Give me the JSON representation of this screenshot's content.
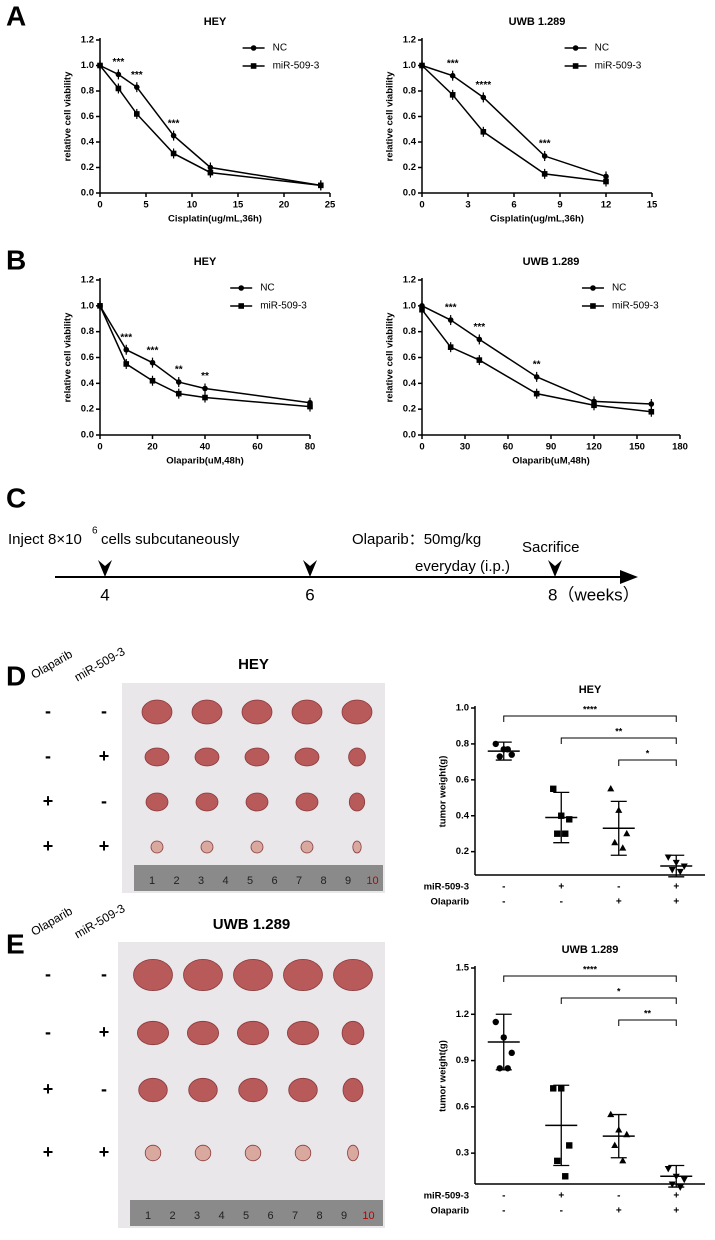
{
  "panels": {
    "labels": [
      "A",
      "B",
      "C",
      "D",
      "E"
    ]
  },
  "chart_data": [
    {
      "type": "line",
      "title": "HEY",
      "xlabel": "Cisplatin(ug/mL,36h)",
      "ylabel": "relative cell viability",
      "x": [
        0,
        2,
        4,
        8,
        12,
        24
      ],
      "series": [
        {
          "name": "NC",
          "color": "#000000",
          "marker": "circle",
          "values": [
            1.0,
            0.93,
            0.83,
            0.45,
            0.2,
            0.06
          ]
        },
        {
          "name": "miR-509-3",
          "color": "#000000",
          "marker": "square",
          "values": [
            1.0,
            0.82,
            0.62,
            0.31,
            0.16,
            0.06
          ]
        }
      ],
      "xlim": [
        0,
        25
      ],
      "xticks": [
        0,
        5,
        10,
        15,
        20,
        25
      ],
      "ylim": [
        0,
        1.2
      ],
      "yticks": [
        {
          "value": 0,
          "label": "0.0"
        },
        0.2,
        0.4,
        0.6,
        0.8,
        {
          "value": 1,
          "label": "1.0"
        },
        1.2
      ],
      "legend": "upper right",
      "annotations": [
        {
          "x": 2,
          "text": "***"
        },
        {
          "x": 4,
          "text": "***"
        },
        {
          "x": 8,
          "text": "***"
        }
      ]
    },
    {
      "type": "line",
      "title": "UWB 1.289",
      "xlabel": "Cisplatin(ug/mL,36h)",
      "ylabel": "relative cell viability",
      "x": [
        0,
        2,
        4,
        8,
        12
      ],
      "series": [
        {
          "name": "NC",
          "color": "#000000",
          "marker": "circle",
          "values": [
            1.0,
            0.92,
            0.75,
            0.29,
            0.13
          ]
        },
        {
          "name": "miR-509-3",
          "color": "#000000",
          "marker": "square",
          "values": [
            1.0,
            0.77,
            0.48,
            0.15,
            0.09
          ]
        }
      ],
      "xlim": [
        0,
        15
      ],
      "xticks": [
        0,
        3,
        6,
        9,
        12,
        15
      ],
      "ylim": [
        0,
        1.2
      ],
      "yticks": [
        {
          "value": 0,
          "label": "0.0"
        },
        0.2,
        0.4,
        0.6,
        0.8,
        {
          "value": 1,
          "label": "1.0"
        },
        1.2
      ],
      "legend": "upper right",
      "annotations": [
        {
          "x": 2,
          "text": "***"
        },
        {
          "x": 4,
          "text": "****"
        },
        {
          "x": 8,
          "text": "***"
        }
      ]
    },
    {
      "type": "line",
      "title": "HEY",
      "xlabel": "Olaparib(uM,48h)",
      "ylabel": "relative cell viability",
      "x": [
        0,
        10,
        20,
        30,
        40,
        80
      ],
      "series": [
        {
          "name": "NC",
          "color": "#000000",
          "marker": "circle",
          "values": [
            1.0,
            0.66,
            0.56,
            0.41,
            0.36,
            0.25
          ]
        },
        {
          "name": "miR-509-3",
          "color": "#000000",
          "marker": "square",
          "values": [
            1.0,
            0.55,
            0.42,
            0.32,
            0.29,
            0.22
          ]
        }
      ],
      "xlim": [
        0,
        80
      ],
      "xticks": [
        0,
        20,
        40,
        60,
        80
      ],
      "ylim": [
        0,
        1.2
      ],
      "yticks": [
        {
          "value": 0,
          "label": "0.0"
        },
        0.2,
        0.4,
        0.6,
        0.8,
        {
          "value": 1,
          "label": "1.0"
        },
        1.2
      ],
      "legend": "upper right",
      "annotations": [
        {
          "x": 10,
          "text": "***"
        },
        {
          "x": 20,
          "text": "***"
        },
        {
          "x": 30,
          "text": "**"
        },
        {
          "x": 40,
          "text": "**"
        }
      ]
    },
    {
      "type": "line",
      "title": "UWB 1.289",
      "xlabel": "Olaparib(uM,48h)",
      "ylabel": "relative cell viability",
      "x": [
        0,
        20,
        40,
        80,
        120,
        160
      ],
      "series": [
        {
          "name": "NC",
          "color": "#000000",
          "marker": "circle",
          "values": [
            1.0,
            0.89,
            0.74,
            0.45,
            0.26,
            0.24
          ]
        },
        {
          "name": "miR-509-3",
          "color": "#000000",
          "marker": "square",
          "values": [
            0.97,
            0.68,
            0.58,
            0.32,
            0.23,
            0.18
          ]
        }
      ],
      "xlim": [
        0,
        180
      ],
      "xticks": [
        0,
        30,
        60,
        90,
        120,
        150,
        180
      ],
      "ylim": [
        0,
        1.2
      ],
      "yticks": [
        {
          "value": 0,
          "label": "0.0"
        },
        0.2,
        0.4,
        0.6,
        0.8,
        {
          "value": 1,
          "label": "1.0"
        },
        1.2
      ],
      "legend": "upper right",
      "annotations": [
        {
          "x": 20,
          "text": "***"
        },
        {
          "x": 40,
          "text": "***"
        },
        {
          "x": 80,
          "text": "**"
        }
      ]
    },
    {
      "type": "dot",
      "title": "HEY",
      "ylabel": "tumor weight(g)",
      "ylim": [
        0.07,
        1.0
      ],
      "yticks": [
        0.2,
        0.4,
        0.6,
        0.8,
        {
          "value": 1,
          "label": "1.0"
        }
      ],
      "groups": [
        {
          "marker": "circle",
          "values": [
            0.8,
            0.77,
            0.74,
            0.73,
            0.77
          ],
          "mean": 0.76,
          "sd": 0.05
        },
        {
          "marker": "square",
          "values": [
            0.55,
            0.4,
            0.38,
            0.3,
            0.3
          ],
          "mean": 0.39,
          "sd": 0.14
        },
        {
          "marker": "triangle",
          "values": [
            0.55,
            0.43,
            0.3,
            0.25,
            0.22
          ],
          "mean": 0.33,
          "sd": 0.15
        },
        {
          "marker": "triangle-down",
          "values": [
            0.17,
            0.14,
            0.12,
            0.1,
            0.09
          ],
          "mean": 0.12,
          "sd": 0.06
        }
      ],
      "row_labels": [
        {
          "name": "miR-509-3",
          "values": [
            "-",
            "+",
            "-",
            "+"
          ]
        },
        {
          "name": "Olaparib",
          "values": [
            "-",
            "-",
            "+",
            "+"
          ]
        }
      ],
      "comparisons": [
        {
          "groups": [
            0,
            3
          ],
          "label": "****"
        },
        {
          "groups": [
            1,
            3
          ],
          "label": "**"
        },
        {
          "groups": [
            2,
            3
          ],
          "label": "*"
        }
      ]
    },
    {
      "type": "dot",
      "title": "UWB 1.289",
      "ylabel": "tumor weight(g)",
      "ylim": [
        0.1,
        1.5
      ],
      "yticks": [
        0.3,
        0.6,
        0.9,
        1.2,
        1.5
      ],
      "groups": [
        {
          "marker": "circle",
          "values": [
            1.15,
            1.05,
            0.95,
            0.85,
            0.85
          ],
          "mean": 1.02,
          "sd": 0.18
        },
        {
          "marker": "square",
          "values": [
            0.72,
            0.72,
            0.35,
            0.25,
            0.15
          ],
          "mean": 0.48,
          "sd": 0.26
        },
        {
          "marker": "triangle",
          "values": [
            0.55,
            0.45,
            0.42,
            0.35,
            0.25
          ],
          "mean": 0.41,
          "sd": 0.14
        },
        {
          "marker": "triangle-down",
          "values": [
            0.2,
            0.15,
            0.13,
            0.1,
            0.08
          ],
          "mean": 0.15,
          "sd": 0.07
        }
      ],
      "row_labels": [
        {
          "name": "miR-509-3",
          "values": [
            "-",
            "+",
            "-",
            "+"
          ]
        },
        {
          "name": "Olaparib",
          "values": [
            "-",
            "-",
            "+",
            "+"
          ]
        }
      ],
      "comparisons": [
        {
          "groups": [
            0,
            3
          ],
          "label": "****"
        },
        {
          "groups": [
            1,
            3
          ],
          "label": "*"
        },
        {
          "groups": [
            2,
            3
          ],
          "label": "**"
        }
      ]
    }
  ],
  "timeline": {
    "inject_prefix": "Inject 8×10",
    "inject_exponent": "6",
    "inject_suffix": "cells subcutaneously",
    "treatment": "Olaparib：50mg/kg",
    "schedule": "everyday (i.p.)",
    "end_event": "Sacrifice",
    "week_labels": [
      "4",
      "6",
      "8（weeks）"
    ]
  },
  "photos": [
    {
      "title": "HEY",
      "column_headers": [
        "Olaparib",
        "miR-509-3"
      ],
      "rows": [
        [
          "-",
          "-"
        ],
        [
          "-",
          "+"
        ],
        [
          "+",
          "-"
        ],
        [
          "+",
          "+"
        ]
      ],
      "ruler_labels": [
        "1",
        "2",
        "3",
        "4",
        "5",
        "6",
        "7",
        "8",
        "9",
        "10"
      ]
    },
    {
      "title": "UWB 1.289",
      "column_headers": [
        "Olaparib",
        "miR-509-3"
      ],
      "rows": [
        [
          "-",
          "-"
        ],
        [
          "-",
          "+"
        ],
        [
          "+",
          "-"
        ],
        [
          "+",
          "+"
        ]
      ],
      "ruler_labels": [
        "1",
        "2",
        "3",
        "4",
        "5",
        "6",
        "7",
        "8",
        "9",
        "10"
      ]
    }
  ]
}
